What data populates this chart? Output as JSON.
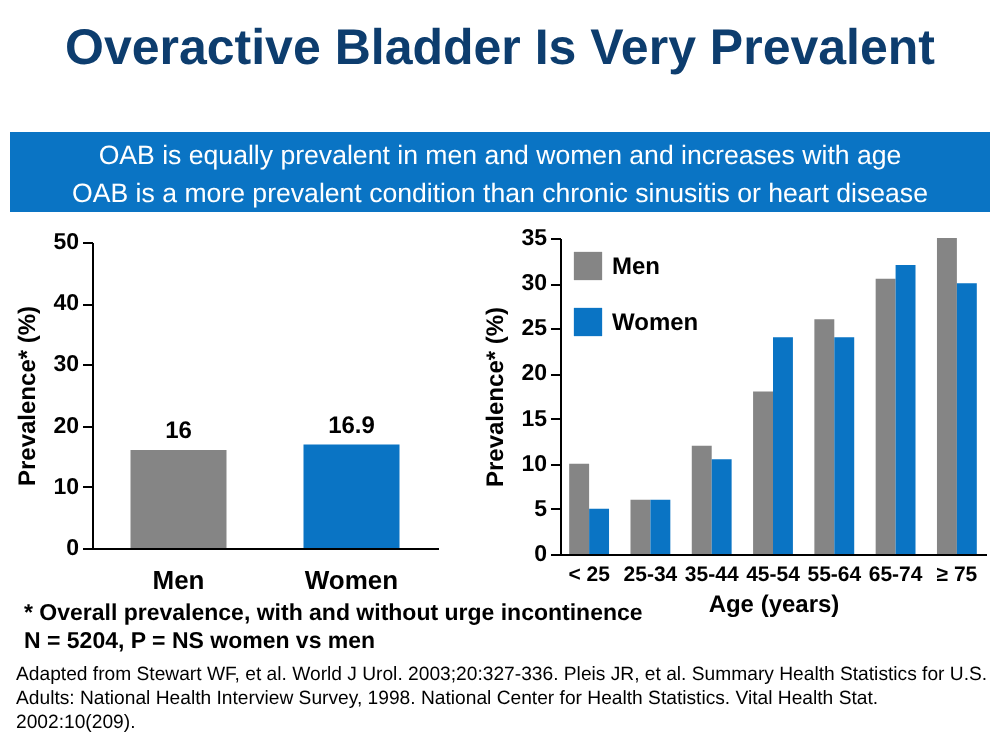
{
  "chart_data": [
    {
      "type": "bar",
      "title": "Overactive Bladder Is Very Prevalent",
      "subtitle": "OAB is equally prevalent in men and women and increases with age\nOAB is a more prevalent condition than chronic sinusitis or heart disease",
      "categories": [
        "Men",
        "Women"
      ],
      "values": [
        16,
        16.9
      ],
      "colors": [
        "#858585",
        "#0a74c4"
      ],
      "data_labels": true,
      "ylabel": "Prevalence* (%)",
      "ylim": [
        0,
        50
      ],
      "yticks": [
        0,
        10,
        20,
        30,
        40,
        50
      ],
      "annotations": [
        "* Overall prevalence, with and without urge incontinence",
        "N = 5204, P = NS women vs men",
        "Adapted from Stewart WF, et al. World J Urol. 2003;20:327-336.  Pleis JR, et al. Summary  Health Statistics for U.S. Adults: National Health Interview Survey, 1998. National Center for Health Statistics. Vital Health Stat. 2002:10(209)."
      ]
    },
    {
      "type": "bar",
      "categories": [
        "< 25",
        "25-34",
        "35-44",
        "45-54",
        "55-64",
        "65-74",
        "≥ 75"
      ],
      "series": [
        {
          "name": "Men",
          "color": "#858585",
          "values": [
            10,
            6,
            12,
            18,
            26,
            30.5,
            35
          ]
        },
        {
          "name": "Women",
          "color": "#0a74c4",
          "values": [
            5,
            6,
            10.5,
            24,
            24,
            32,
            30
          ]
        }
      ],
      "xlabel": "Age (years)",
      "ylabel": "Prevalence* (%)",
      "ylim": [
        0,
        35
      ],
      "yticks": [
        0,
        5,
        10,
        15,
        20,
        25,
        30,
        35
      ],
      "legend": "top left"
    }
  ]
}
